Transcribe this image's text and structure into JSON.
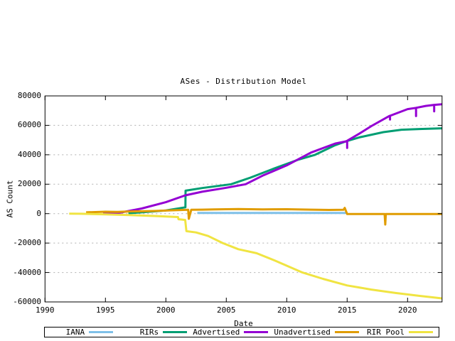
{
  "chart_data": {
    "type": "line",
    "title": "ASes - Distribution Model",
    "xlabel": "Date",
    "ylabel": "AS Count",
    "xlim": [
      1990,
      2023
    ],
    "ylim": [
      -60000,
      80000
    ],
    "x_ticks": [
      1990,
      1995,
      2000,
      2005,
      2010,
      2015,
      2020
    ],
    "y_ticks": [
      80000,
      60000,
      40000,
      20000,
      0,
      -20000,
      -40000,
      -60000
    ],
    "y_gridlines": [
      60000,
      40000,
      20000,
      0,
      -20000,
      -40000
    ],
    "grid": "horizontal-dashed",
    "grid_color": "#b0b0b0",
    "axis_color": "#000000",
    "legend_position": "bottom",
    "series": [
      {
        "name": "IANA",
        "color": "#7ec0e8",
        "points": [
          [
            2002.6,
            450
          ],
          [
            2015.0,
            450
          ]
        ]
      },
      {
        "name": "RIRs",
        "color": "#009e73",
        "points": [
          [
            1996.9,
            300
          ],
          [
            1998,
            900
          ],
          [
            2000,
            2200
          ],
          [
            2001.62,
            4300
          ],
          [
            2001.63,
            15600
          ],
          [
            2003,
            17400
          ],
          [
            2005.4,
            20000
          ],
          [
            2007,
            24500
          ],
          [
            2009,
            30800
          ],
          [
            2011,
            36800
          ],
          [
            2012.35,
            40000
          ],
          [
            2014,
            46500
          ],
          [
            2014.9,
            49100
          ],
          [
            2016,
            51800
          ],
          [
            2018,
            55400
          ],
          [
            2019.5,
            57000
          ],
          [
            2021,
            57500
          ],
          [
            2022.85,
            58000
          ]
        ]
      },
      {
        "name": "Advertised",
        "color": "#9400d3",
        "points": [
          [
            1994.8,
            100
          ],
          [
            1996.2,
            650
          ],
          [
            1998,
            3500
          ],
          [
            2000,
            7800
          ],
          [
            2001.6,
            12400
          ],
          [
            2003,
            14900
          ],
          [
            2005,
            17600
          ],
          [
            2006.6,
            20000
          ],
          [
            2008,
            25800
          ],
          [
            2010,
            32800
          ],
          [
            2012,
            41500
          ],
          [
            2014,
            47600
          ],
          [
            2014.9,
            49100
          ],
          [
            2015.0,
            49500
          ],
          [
            2015.0,
            44600
          ],
          [
            2015.0,
            49500
          ],
          [
            2016,
            54300
          ],
          [
            2017,
            59500
          ],
          [
            2018.5,
            66400
          ],
          [
            2018.55,
            66500
          ],
          [
            2018.55,
            63900
          ],
          [
            2018.55,
            66500
          ],
          [
            2020,
            71000
          ],
          [
            2020.7,
            71900
          ],
          [
            2020.7,
            66300
          ],
          [
            2020.7,
            71900
          ],
          [
            2021.5,
            73200
          ],
          [
            2022.2,
            73900
          ],
          [
            2022.2,
            69500
          ],
          [
            2022.2,
            73900
          ],
          [
            2022.85,
            74300
          ]
        ]
      },
      {
        "name": "Unadvertised",
        "color": "#e09c00",
        "points": [
          [
            1993.4,
            900
          ],
          [
            1995,
            1300
          ],
          [
            1996,
            1200
          ],
          [
            1997,
            1500
          ],
          [
            1998,
            1600
          ],
          [
            1999,
            1800
          ],
          [
            2000,
            2100
          ],
          [
            2001,
            2400
          ],
          [
            2001.85,
            2600
          ],
          [
            2001.9,
            -3500
          ],
          [
            2002.1,
            2600
          ],
          [
            2003,
            2700
          ],
          [
            2004,
            2900
          ],
          [
            2006,
            3100
          ],
          [
            2008,
            2900
          ],
          [
            2010,
            3000
          ],
          [
            2012,
            2700
          ],
          [
            2013.5,
            2500
          ],
          [
            2014.7,
            2600
          ],
          [
            2014.8,
            3900
          ],
          [
            2015.0,
            -300
          ],
          [
            2018.1,
            -300
          ],
          [
            2018.15,
            -7400
          ],
          [
            2018.2,
            -300
          ],
          [
            2022.85,
            -300
          ]
        ]
      },
      {
        "name": "RIR Pool",
        "color": "#f0e442",
        "points": [
          [
            1992,
            0
          ],
          [
            1993,
            -100
          ],
          [
            1995,
            -500
          ],
          [
            1997,
            -1000
          ],
          [
            1999,
            -1600
          ],
          [
            2000.5,
            -2100
          ],
          [
            2001.0,
            -2300
          ],
          [
            2001.05,
            -3800
          ],
          [
            2001.6,
            -4300
          ],
          [
            2001.7,
            -11900
          ],
          [
            2002.5,
            -12800
          ],
          [
            2003.5,
            -15200
          ],
          [
            2004.7,
            -20000
          ],
          [
            2006,
            -24200
          ],
          [
            2007.5,
            -26900
          ],
          [
            2009,
            -31800
          ],
          [
            2011.3,
            -40000
          ],
          [
            2013,
            -44300
          ],
          [
            2015,
            -48800
          ],
          [
            2017,
            -51600
          ],
          [
            2019,
            -53900
          ],
          [
            2021,
            -55900
          ],
          [
            2022.85,
            -57600
          ]
        ]
      }
    ]
  }
}
